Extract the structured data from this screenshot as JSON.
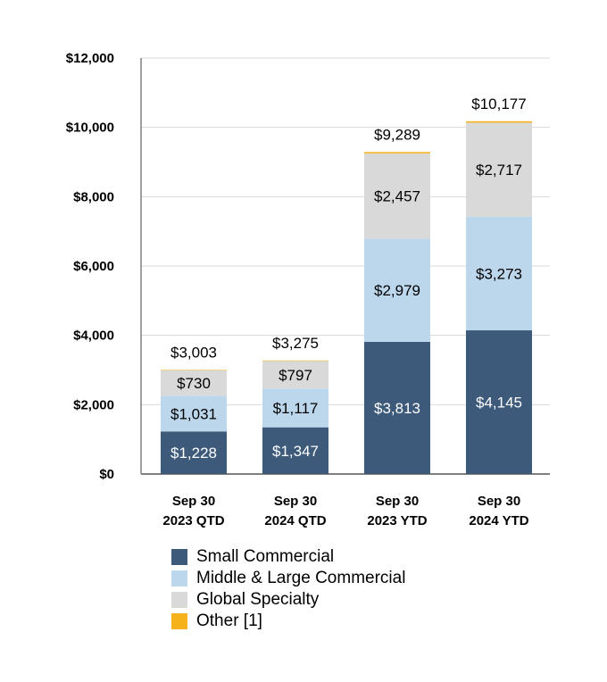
{
  "chart_data": {
    "type": "bar",
    "stacked": true,
    "categories": [
      [
        "Sep 30",
        "2023 QTD"
      ],
      [
        "Sep 30",
        "2024 QTD"
      ],
      [
        "Sep 30",
        "2023 YTD"
      ],
      [
        "Sep 30",
        "2024 YTD"
      ]
    ],
    "series": [
      {
        "name": "Small Commercial",
        "color": "#3d5a7a",
        "label_color": "#ffffff",
        "values": [
          1228,
          1347,
          3813,
          4145
        ],
        "labels": [
          "$1,228",
          "$1,347",
          "$3,813",
          "$4,145"
        ]
      },
      {
        "name": "Middle & Large Commercial",
        "color": "#bcd7ec",
        "label_color": "#000000",
        "values": [
          1031,
          1117,
          2979,
          3273
        ],
        "labels": [
          "$1,031",
          "$1,117",
          "$2,979",
          "$3,273"
        ]
      },
      {
        "name": "Global Specialty",
        "color": "#d9d9d9",
        "label_color": "#000000",
        "values": [
          730,
          797,
          2457,
          2717
        ],
        "labels": [
          "$730",
          "$797",
          "$2,457",
          "$2,717"
        ]
      },
      {
        "name": "Other [1]",
        "color": "#f5b21a",
        "label_color": "#000000",
        "values": [
          14,
          14,
          40,
          42
        ],
        "labels": [
          "",
          "",
          "",
          ""
        ]
      }
    ],
    "totals": [
      3003,
      3275,
      9289,
      10177
    ],
    "total_labels": [
      "$3,003",
      "$3,275",
      "$9,289",
      "$10,177"
    ],
    "ylim": [
      0,
      12000
    ],
    "yticks": [
      0,
      2000,
      4000,
      6000,
      8000,
      10000,
      12000
    ],
    "ytick_labels": [
      "$0",
      "$2,000",
      "$4,000",
      "$6,000",
      "$8,000",
      "$10,000",
      "$12,000"
    ],
    "grid": true,
    "legend_position": "bottom",
    "title": "",
    "xlabel": "",
    "ylabel": ""
  }
}
